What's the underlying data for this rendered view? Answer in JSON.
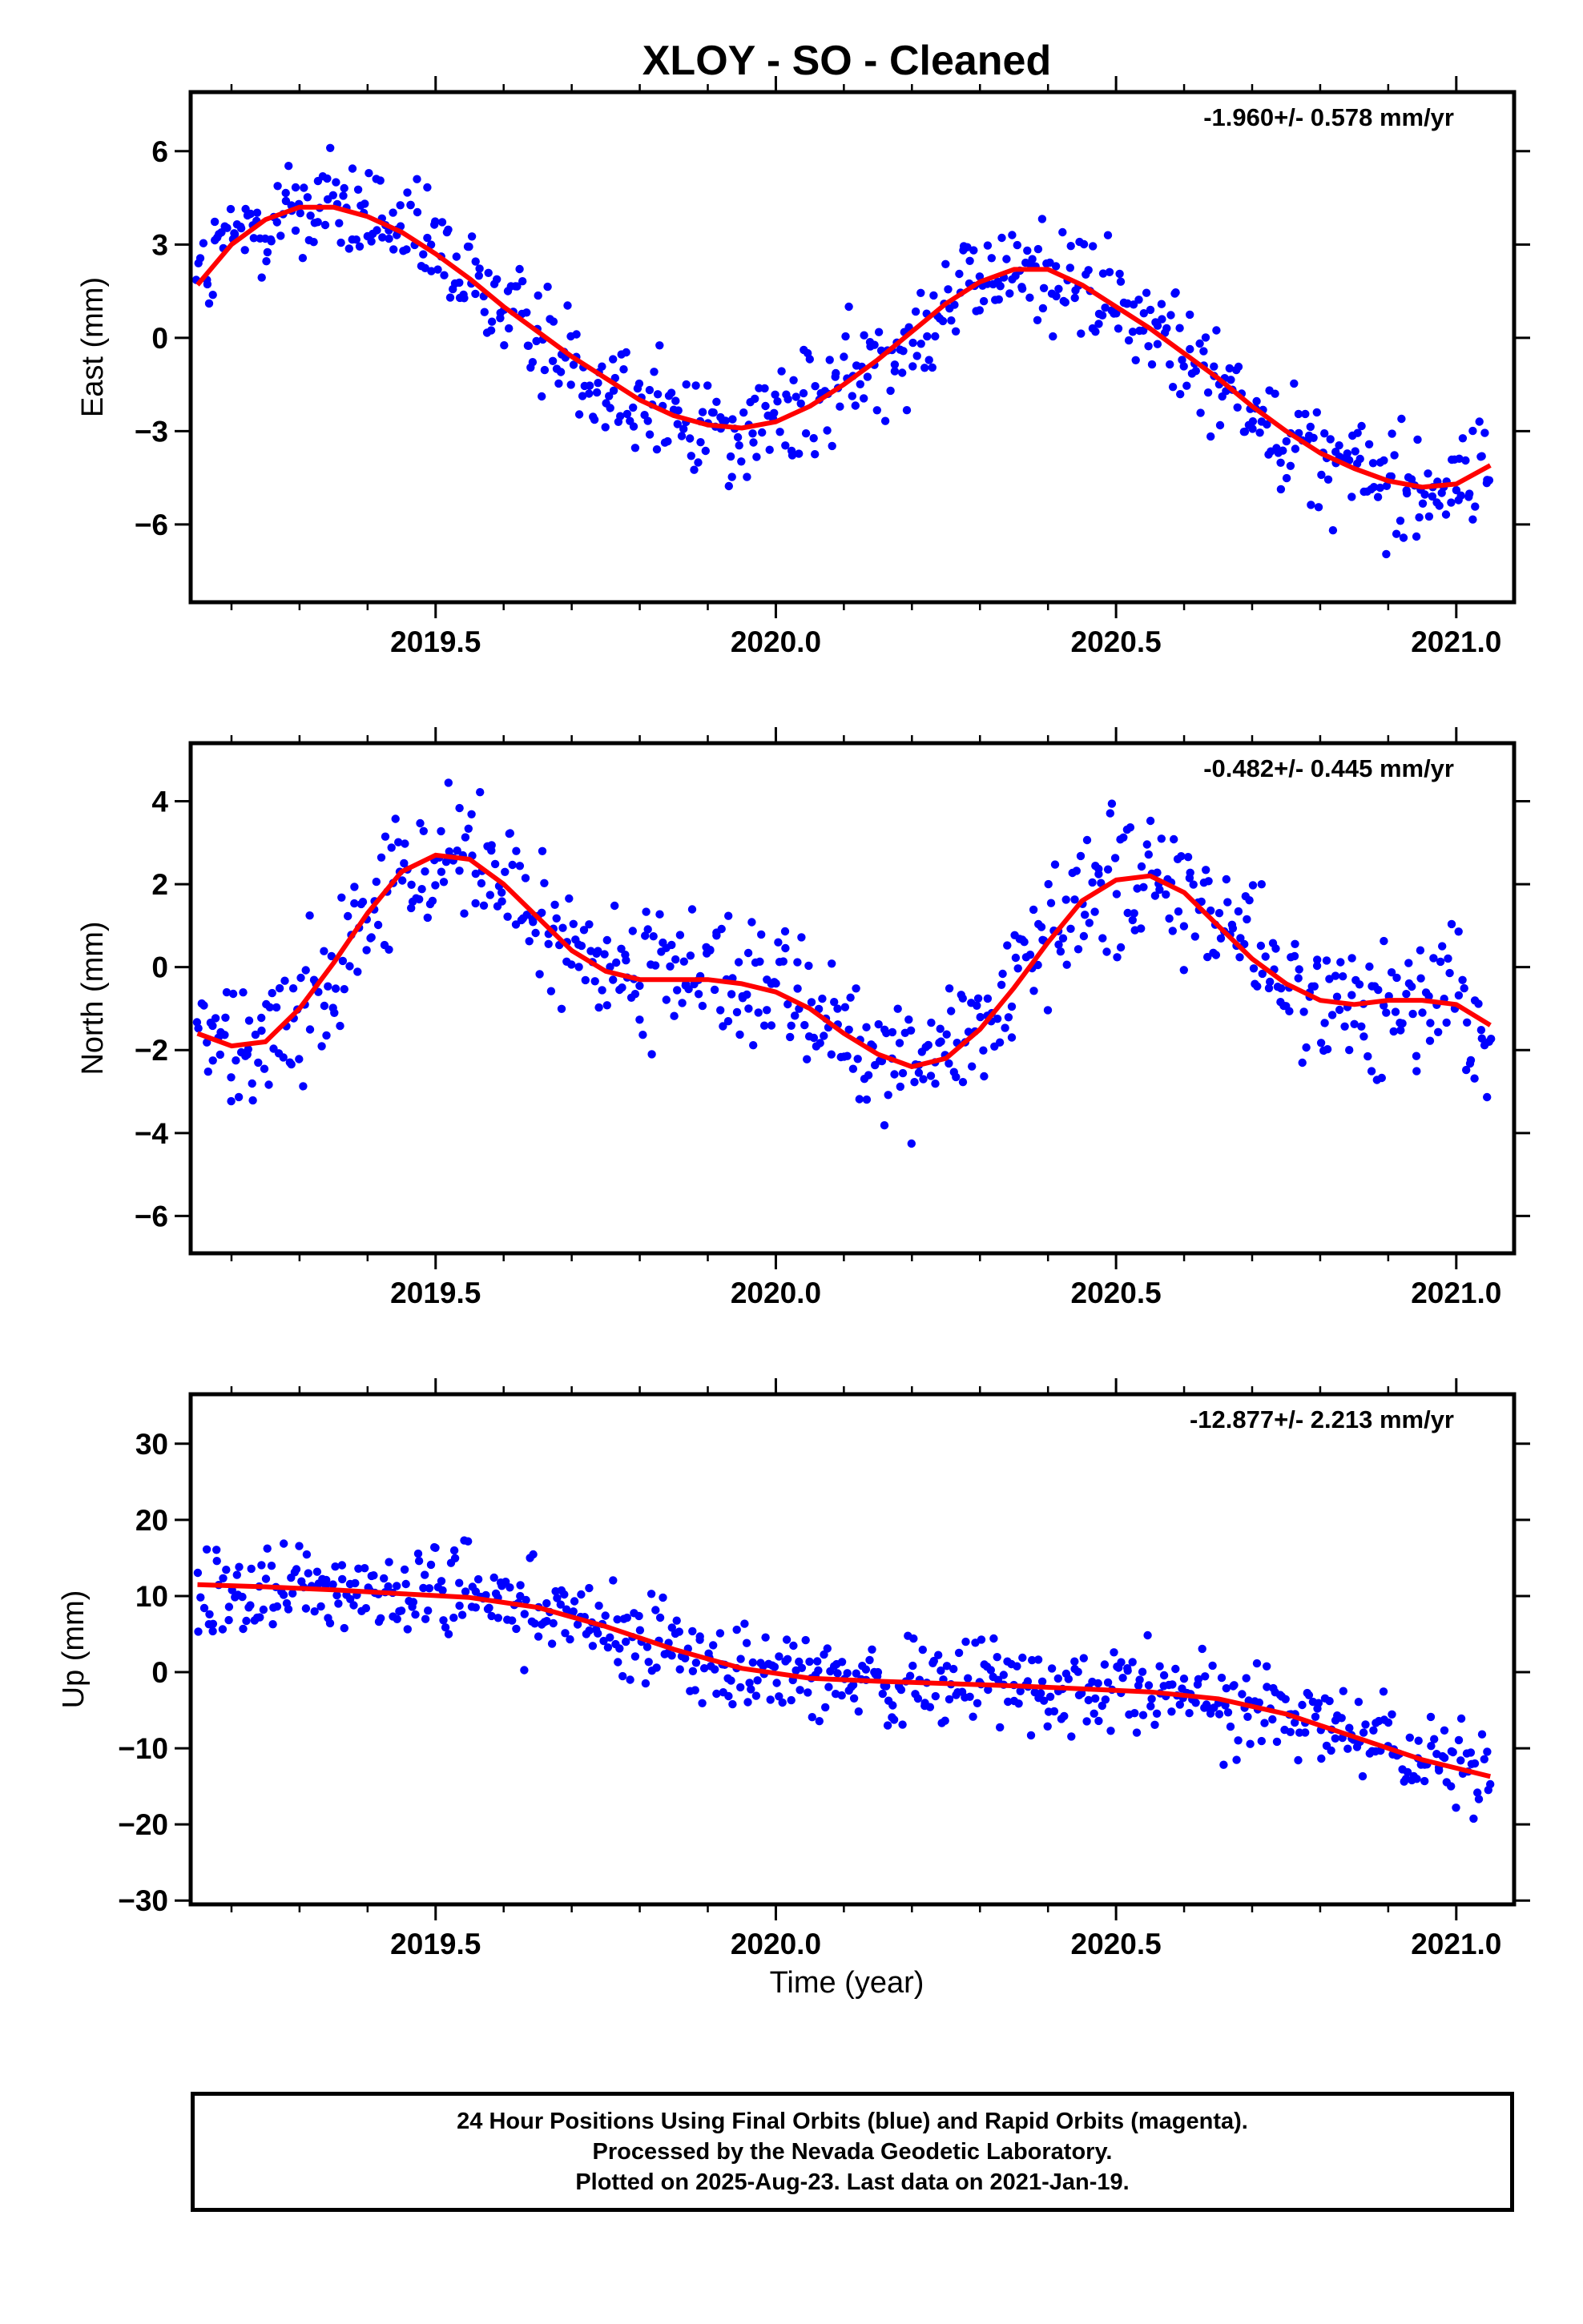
{
  "title": "XLOY  - SO - Cleaned",
  "colors": {
    "points": "#0000ff",
    "fit": "#ff0000",
    "frame": "#000000"
  },
  "xlabel": "Time (year)",
  "footer": {
    "line1": "24 Hour Positions Using Final Orbits (blue) and Rapid Orbits (magenta).",
    "line2": "Processed by the Nevada Geodetic Laboratory.",
    "line3": "Plotted on 2025-Aug-23. Last data on 2021-Jan-19."
  },
  "chart_data": [
    {
      "type": "scatter",
      "panel": "east",
      "ylabel": "East (mm)",
      "rate_text": "-1.960+/- 0.578 mm/yr",
      "xlim": [
        2019.14,
        2021.085
      ],
      "ylim": [
        -8.5,
        7.9
      ],
      "x_ticks": [
        2019.5,
        2020.0,
        2020.5,
        2021.0
      ],
      "x_tick_labels": [
        "2019.5",
        "2020.0",
        "2020.5",
        "2021.0"
      ],
      "y_ticks": [
        -6,
        -3,
        0,
        3,
        6
      ],
      "y_tick_labels": [
        "−6",
        "−3",
        "0",
        "3",
        "6"
      ],
      "fit_curve": {
        "x": [
          2019.15,
          2019.2,
          2019.25,
          2019.3,
          2019.35,
          2019.4,
          2019.45,
          2019.5,
          2019.55,
          2019.6,
          2019.65,
          2019.7,
          2019.75,
          2019.8,
          2019.85,
          2019.9,
          2019.95,
          2020.0,
          2020.05,
          2020.1,
          2020.15,
          2020.2,
          2020.25,
          2020.3,
          2020.35,
          2020.4,
          2020.45,
          2020.5,
          2020.55,
          2020.6,
          2020.65,
          2020.7,
          2020.75,
          2020.8,
          2020.85,
          2020.9,
          2020.95,
          2021.0,
          2021.05
        ],
        "y": [
          1.7,
          3.0,
          3.8,
          4.2,
          4.2,
          3.9,
          3.4,
          2.7,
          1.9,
          1.0,
          0.2,
          -0.6,
          -1.3,
          -2.0,
          -2.5,
          -2.8,
          -2.9,
          -2.7,
          -2.2,
          -1.5,
          -0.7,
          0.2,
          1.1,
          1.8,
          2.2,
          2.2,
          1.7,
          1.0,
          0.3,
          -0.5,
          -1.3,
          -2.2,
          -3.0,
          -3.7,
          -4.2,
          -4.6,
          -4.8,
          -4.7,
          -4.1
        ]
      },
      "scatter": {
        "min_x": 2019.15,
        "max_x": 2021.05,
        "noise": 1.3
      }
    },
    {
      "type": "scatter",
      "panel": "north",
      "ylabel": "North (mm)",
      "rate_text": "-0.482+/- 0.445 mm/yr",
      "xlim": [
        2019.14,
        2021.085
      ],
      "ylim": [
        -6.9,
        5.4
      ],
      "x_ticks": [
        2019.5,
        2020.0,
        2020.5,
        2021.0
      ],
      "x_tick_labels": [
        "2019.5",
        "2020.0",
        "2020.5",
        "2021.0"
      ],
      "y_ticks": [
        -6,
        -4,
        -2,
        0,
        2,
        4
      ],
      "y_tick_labels": [
        "−6",
        "−4",
        "−2",
        "0",
        "2",
        "4"
      ],
      "fit_curve": {
        "x": [
          2019.15,
          2019.2,
          2019.25,
          2019.3,
          2019.35,
          2019.4,
          2019.45,
          2019.5,
          2019.55,
          2019.6,
          2019.65,
          2019.7,
          2019.75,
          2019.8,
          2019.85,
          2019.9,
          2019.95,
          2020.0,
          2020.05,
          2020.1,
          2020.15,
          2020.2,
          2020.25,
          2020.3,
          2020.35,
          2020.4,
          2020.45,
          2020.5,
          2020.55,
          2020.6,
          2020.65,
          2020.7,
          2020.75,
          2020.8,
          2020.85,
          2020.9,
          2020.95,
          2021.0,
          2021.05
        ],
        "y": [
          -1.6,
          -1.9,
          -1.8,
          -1.0,
          0.1,
          1.3,
          2.3,
          2.7,
          2.6,
          2.0,
          1.2,
          0.4,
          -0.1,
          -0.3,
          -0.3,
          -0.3,
          -0.4,
          -0.6,
          -1.0,
          -1.6,
          -2.1,
          -2.4,
          -2.2,
          -1.5,
          -0.5,
          0.6,
          1.6,
          2.1,
          2.2,
          1.8,
          1.0,
          0.2,
          -0.4,
          -0.8,
          -0.9,
          -0.8,
          -0.8,
          -0.9,
          -1.4
        ]
      },
      "scatter": {
        "min_x": 2019.15,
        "max_x": 2021.05,
        "noise": 1.1
      }
    },
    {
      "type": "scatter",
      "panel": "up",
      "ylabel": "Up (mm)",
      "rate_text": "-12.877+/- 2.213 mm/yr",
      "xlim": [
        2019.14,
        2021.085
      ],
      "ylim": [
        -30.5,
        36.5
      ],
      "x_ticks": [
        2019.5,
        2020.0,
        2020.5,
        2021.0
      ],
      "x_tick_labels": [
        "2019.5",
        "2020.0",
        "2020.5",
        "2021.0"
      ],
      "y_ticks": [
        -30,
        -20,
        -10,
        0,
        10,
        20,
        30
      ],
      "y_tick_labels": [
        "−30",
        "−20",
        "−10",
        "0",
        "10",
        "20",
        "30"
      ],
      "fit_curve": {
        "x": [
          2019.15,
          2019.25,
          2019.35,
          2019.45,
          2019.55,
          2019.65,
          2019.75,
          2019.85,
          2019.95,
          2020.05,
          2020.15,
          2020.25,
          2020.35,
          2020.45,
          2020.55,
          2020.65,
          2020.75,
          2020.85,
          2020.95,
          2021.05
        ],
        "y": [
          11.5,
          11.2,
          10.8,
          10.3,
          9.8,
          8.5,
          6.0,
          3.0,
          0.5,
          -0.8,
          -1.2,
          -1.5,
          -1.8,
          -2.2,
          -2.6,
          -3.5,
          -5.5,
          -8.5,
          -11.5,
          -13.7
        ]
      },
      "scatter": {
        "min_x": 2019.15,
        "max_x": 2021.05,
        "noise": 4.2
      }
    }
  ]
}
